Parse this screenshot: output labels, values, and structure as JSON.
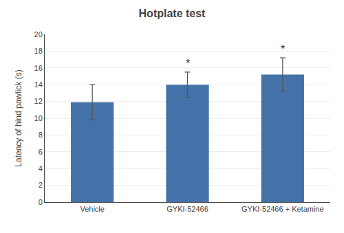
{
  "chart_data": {
    "type": "bar",
    "title": "Hotplate test",
    "ylabel": "Latency of hind pawlick (s)",
    "categories": [
      "Vehicle",
      "GYKI-52466",
      "GYKI-52466 + Ketamine"
    ],
    "values": [
      11.9,
      14.0,
      15.2
    ],
    "errors": [
      2.1,
      1.5,
      2.0
    ],
    "color": "#4472a8",
    "ylim": [
      0,
      20
    ],
    "yticks": [
      0,
      2,
      4,
      6,
      8,
      10,
      12,
      14,
      16,
      18,
      20
    ],
    "grid": true,
    "annotations": [
      {
        "category": "GYKI-52466",
        "text": "*"
      },
      {
        "category": "GYKI-52466 + Ketamine",
        "text": "*"
      }
    ]
  }
}
